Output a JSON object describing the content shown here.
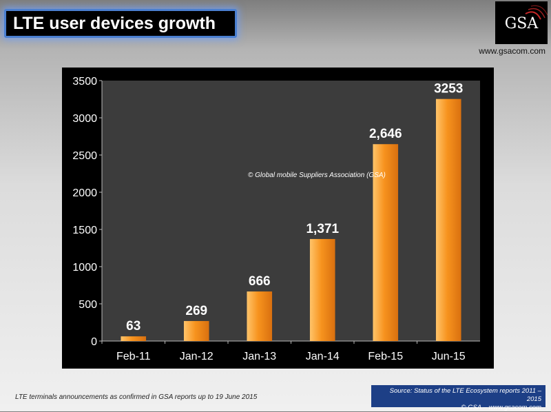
{
  "header": {
    "title": "LTE user devices growth"
  },
  "logo": {
    "text": "GSA",
    "url": "www.gsacom.com"
  },
  "chart_data": {
    "type": "bar",
    "categories": [
      "Feb-11",
      "Jan-12",
      "Jan-13",
      "Jan-14",
      "Feb-15",
      "Jun-15"
    ],
    "values": [
      63,
      269,
      666,
      1371,
      2646,
      3253
    ],
    "data_labels": [
      "63",
      "269",
      "666",
      "1,371",
      "2,646",
      "3253"
    ],
    "yticks": [
      "0",
      "500",
      "1000",
      "1500",
      "2000",
      "2500",
      "3000",
      "3500"
    ],
    "ylim": [
      0,
      3500
    ],
    "annotation": "© Global mobile Suppliers Association (GSA)",
    "colors": {
      "bar_light": "#ffc46a",
      "bar_mid": "#f7931e",
      "bar_dark": "#d9700f",
      "plot_bg": "#3c3c3c",
      "panel_bg": "#000000"
    }
  },
  "footer": {
    "note": "LTE terminals announcements as confirmed in GSA reports up to 19 June 2015",
    "source_line1": "Source: Status of the LTE Ecosystem reports 2011 – 2015",
    "source_line2": "© GSA – www.gsacom.com"
  }
}
